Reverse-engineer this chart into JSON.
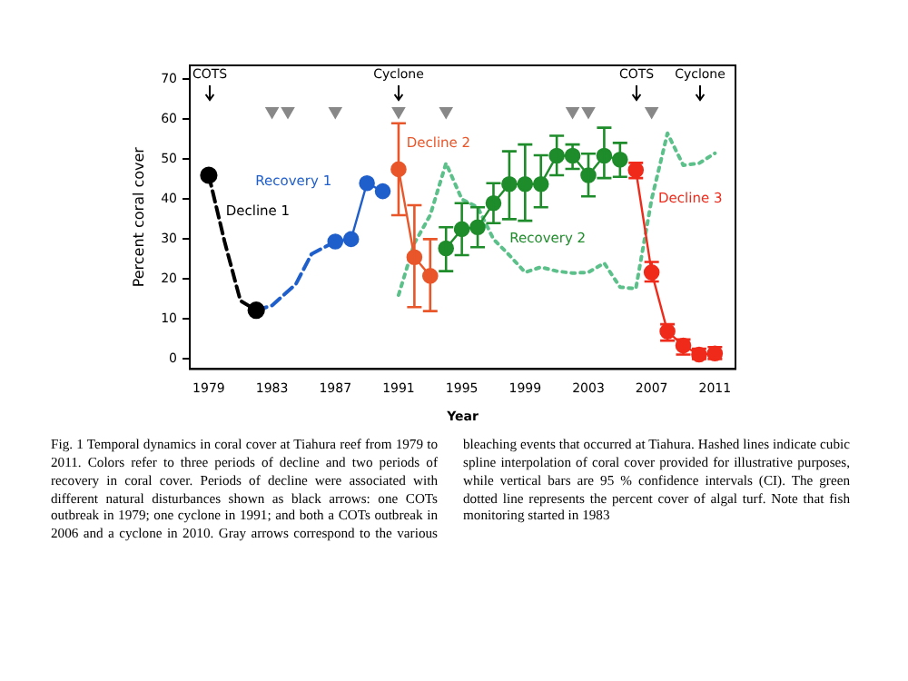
{
  "chart_data": {
    "type": "line",
    "xlabel": "Year",
    "ylabel": "Percent coral cover",
    "xlim": [
      1977.8,
      2012.3
    ],
    "xticks": [
      1979,
      1983,
      1987,
      1991,
      1995,
      1999,
      2003,
      2007,
      2011
    ],
    "ref_lines": [
      {
        "axis": "x",
        "value": 1979,
        "label": "COTS",
        "color": "#000000"
      },
      {
        "axis": "x",
        "value": 1991,
        "label": "Cyclone",
        "color": "#000000"
      },
      {
        "axis": "x",
        "value": 2006,
        "label": "COTS",
        "color": "#000000"
      },
      {
        "axis": "x",
        "value": 2010,
        "label": "Cyclone",
        "color": "#000000"
      }
    ],
    "ylim": [
      -2.5,
      73.5
    ],
    "yticks": [
      0,
      10,
      20,
      30,
      40,
      50,
      60,
      70
    ],
    "grid": false,
    "legend": false,
    "series": [
      {
        "type": "scatter",
        "color": "#000000",
        "x": [
          1979,
          1982
        ],
        "values": [
          46,
          12.2
        ],
        "marker": "circle"
      },
      {
        "name": "Decline 1",
        "color": "#000000",
        "x": [
          1979,
          1980,
          1981,
          1982
        ],
        "values": [
          46,
          29.4,
          14.6,
          12.2
        ],
        "marker": "none",
        "line_style": "dashed"
      },
      {
        "color": "#1f5fcc",
        "x": [
          1982,
          1983,
          1984.5,
          1985.5,
          1987
        ],
        "values": [
          12.2,
          13.4,
          18.7,
          26.3,
          29.4
        ],
        "marker": "none",
        "line_style": "dashed"
      },
      {
        "name": "Recovery 1",
        "color": "#1f5fcc",
        "x": [
          1987,
          1988,
          1989,
          1990
        ],
        "values": [
          29.4,
          30,
          44,
          42
        ],
        "marker": "circle",
        "line_style": "solid"
      },
      {
        "name": "Decline 2",
        "color": "#e8562a",
        "x": [
          1991,
          1992,
          1993
        ],
        "values": [
          47.5,
          25.5,
          20.8
        ],
        "errors": [
          [
            36,
            59
          ],
          [
            13,
            38.5
          ],
          [
            12,
            30
          ]
        ],
        "marker": "circle",
        "line_style": "solid"
      },
      {
        "name": "Recovery 2",
        "color": "#1e8c2a",
        "x": [
          1994,
          1995,
          1996,
          1997,
          1998,
          1999,
          2000,
          2001,
          2002,
          2003,
          2004,
          2005
        ],
        "values": [
          27.7,
          32.5,
          33,
          39,
          43.8,
          43.8,
          43.8,
          50.9,
          50.9,
          46,
          50.9,
          49.9
        ],
        "errors": [
          [
            22,
            33
          ],
          [
            26,
            39
          ],
          [
            28,
            38
          ],
          [
            34,
            44
          ],
          [
            35,
            52
          ],
          [
            34.6,
            53.7
          ],
          [
            38,
            51
          ],
          [
            46,
            55.9
          ],
          [
            47.6,
            53.7
          ],
          [
            40.7,
            51.4
          ],
          [
            45.3,
            57.9
          ],
          [
            45.6,
            54.1
          ]
        ],
        "marker": "circle",
        "line_style": "solid"
      },
      {
        "name": "Decline 3",
        "color": "#f02a1a",
        "x": [
          2006,
          2007,
          2008,
          2009,
          2010,
          2011
        ],
        "values": [
          47.3,
          21.7,
          6.9,
          3.4,
          1.1,
          1.4
        ],
        "errors": [
          [
            45.3,
            49.1
          ],
          [
            19.4,
            24.3
          ],
          [
            4.6,
            8.7
          ],
          [
            1.1,
            4.9
          ],
          [
            0,
            2.6
          ],
          [
            0,
            3
          ]
        ],
        "marker": "circle",
        "line_style": "solid"
      },
      {
        "type": "scatter",
        "color": "#888888",
        "x": [
          1983,
          1984,
          1987,
          1991,
          1994,
          2002,
          2003,
          2007
        ],
        "values": [
          62,
          62,
          62,
          62,
          62,
          62,
          62,
          62
        ],
        "marker": "triangle"
      },
      {
        "color": "#5cc08a",
        "x": [
          1991,
          1992,
          1993,
          1994,
          1995,
          1996,
          1997,
          1998,
          1999,
          2000,
          2001,
          2002,
          2003,
          2004,
          2005,
          2006,
          2007,
          2008,
          2009,
          2010,
          2011
        ],
        "values": [
          16,
          29,
          36,
          49,
          40,
          38,
          30,
          26,
          21.7,
          23,
          22,
          21.5,
          21.7,
          24,
          18,
          17.6,
          40,
          56.5,
          48.5,
          49,
          51.5
        ],
        "marker": "none",
        "line_style": "dotted"
      }
    ],
    "annotations": [
      "Fig. 1 Temporal dynamics in coral cover at Tiahura reef from 1979 to 2011. Colors refer to three periods of decline and two periods of recovery in coral cover. Periods of decline were associated with different natural disturbances shown as black arrows: one COTs outbreak in 1979; one cyclone in 1991; and both a COTs outbreak in 2006 and a cyclone in 2010. Gray arrows correspond to the various bleaching events that occurred at Tiahura. Hashed lines indicate cubic spline interpolation of coral cover provided for illustrative purposes, while vertical bars are 95 % confidence intervals (CI). The green dotted line represents the percent cover of algal turf. Note that fish monitoring started in 1983"
    ]
  }
}
